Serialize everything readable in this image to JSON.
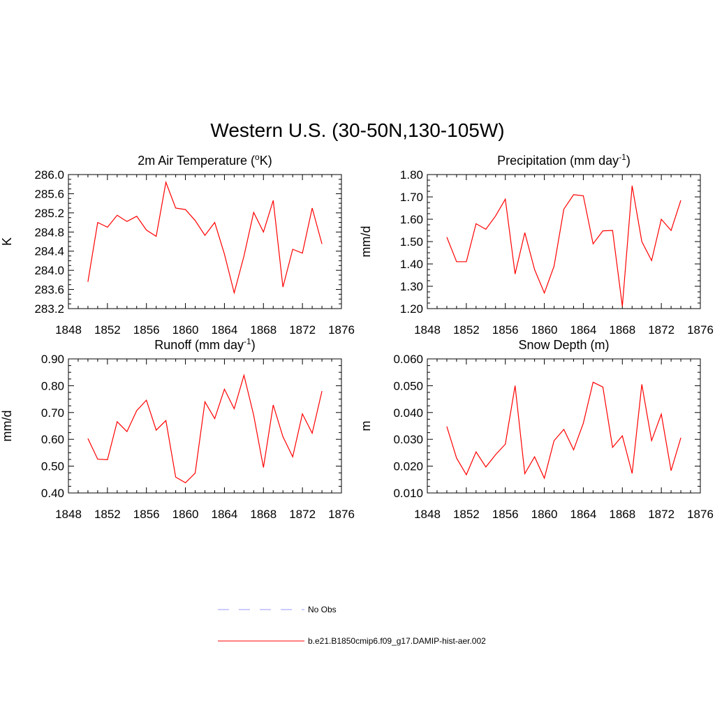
{
  "title": "Western U.S. (30-50N,130-105W)",
  "chart_data": [
    {
      "type": "line",
      "title": "2m Air Temperature (",
      "title_sup": "o",
      "title_after": "K)",
      "ylabel": "K",
      "xlim": [
        1848,
        1876
      ],
      "ylim": [
        283.2,
        286.0
      ],
      "xticks": [
        1848,
        1852,
        1856,
        1860,
        1864,
        1868,
        1872,
        1876
      ],
      "yticks": [
        "283.2",
        "283.6",
        "284.0",
        "284.4",
        "284.8",
        "285.2",
        "285.6",
        "286.0"
      ],
      "x": [
        1850,
        1851,
        1852,
        1853,
        1854,
        1855,
        1856,
        1857,
        1858,
        1859,
        1860,
        1861,
        1862,
        1863,
        1864,
        1865,
        1866,
        1867,
        1868,
        1869,
        1870,
        1871,
        1872,
        1873,
        1874
      ],
      "series": [
        {
          "name": "b.e21.B1850cmip6.f09_g17.DAMIP-hist-aer.002",
          "color": "#ff0000",
          "values": [
            283.76,
            285.0,
            284.9,
            285.15,
            285.02,
            285.13,
            284.84,
            284.71,
            285.84,
            285.3,
            285.27,
            285.04,
            284.73,
            285.0,
            284.34,
            283.53,
            284.3,
            285.21,
            284.8,
            285.46,
            283.65,
            284.44,
            284.36,
            285.3,
            284.55
          ]
        }
      ]
    },
    {
      "type": "line",
      "title": "Precipitation (mm day",
      "title_sup": "-1",
      "title_after": ")",
      "ylabel": "mm/d",
      "xlim": [
        1848,
        1876
      ],
      "ylim": [
        1.2,
        1.8
      ],
      "xticks": [
        1848,
        1852,
        1856,
        1860,
        1864,
        1868,
        1872,
        1876
      ],
      "yticks": [
        "1.20",
        "1.30",
        "1.40",
        "1.50",
        "1.60",
        "1.70",
        "1.80"
      ],
      "x": [
        1850,
        1851,
        1852,
        1853,
        1854,
        1855,
        1856,
        1857,
        1858,
        1859,
        1860,
        1861,
        1862,
        1863,
        1864,
        1865,
        1866,
        1867,
        1868,
        1869,
        1870,
        1871,
        1872,
        1873,
        1874
      ],
      "series": [
        {
          "name": "b.e21.B1850cmip6.f09_g17.DAMIP-hist-aer.002",
          "color": "#ff0000",
          "values": [
            1.52,
            1.41,
            1.41,
            1.58,
            1.555,
            1.615,
            1.69,
            1.355,
            1.54,
            1.375,
            1.27,
            1.39,
            1.645,
            1.71,
            1.705,
            1.49,
            1.548,
            1.55,
            1.21,
            1.75,
            1.5,
            1.415,
            1.6,
            1.55,
            1.685
          ]
        }
      ]
    },
    {
      "type": "line",
      "title": "Runoff (mm day",
      "title_sup": "-1",
      "title_after": ")",
      "ylabel": "mm/d",
      "xlim": [
        1848,
        1876
      ],
      "ylim": [
        0.4,
        0.9
      ],
      "xticks": [
        1848,
        1852,
        1856,
        1860,
        1864,
        1868,
        1872,
        1876
      ],
      "yticks": [
        "0.40",
        "0.50",
        "0.60",
        "0.70",
        "0.80",
        "0.90"
      ],
      "x": [
        1850,
        1851,
        1852,
        1853,
        1854,
        1855,
        1856,
        1857,
        1858,
        1859,
        1860,
        1861,
        1862,
        1863,
        1864,
        1865,
        1866,
        1867,
        1868,
        1869,
        1870,
        1871,
        1872,
        1873,
        1874
      ],
      "series": [
        {
          "name": "b.e21.B1850cmip6.f09_g17.DAMIP-hist-aer.002",
          "color": "#ff0000",
          "values": [
            0.603,
            0.526,
            0.524,
            0.666,
            0.629,
            0.707,
            0.746,
            0.634,
            0.67,
            0.459,
            0.438,
            0.474,
            0.74,
            0.677,
            0.787,
            0.714,
            0.839,
            0.69,
            0.495,
            0.728,
            0.61,
            0.535,
            0.695,
            0.623,
            0.78
          ]
        }
      ]
    },
    {
      "type": "line",
      "title": "Snow Depth (m)",
      "title_sup": "",
      "title_after": "",
      "ylabel": "m",
      "xlim": [
        1848,
        1876
      ],
      "ylim": [
        0.01,
        0.06
      ],
      "xticks": [
        1848,
        1852,
        1856,
        1860,
        1864,
        1868,
        1872,
        1876
      ],
      "yticks": [
        "0.010",
        "0.020",
        "0.030",
        "0.040",
        "0.050",
        "0.060"
      ],
      "x": [
        1850,
        1851,
        1852,
        1853,
        1854,
        1855,
        1856,
        1857,
        1858,
        1859,
        1860,
        1861,
        1862,
        1863,
        1864,
        1865,
        1866,
        1867,
        1868,
        1869,
        1870,
        1871,
        1872,
        1873,
        1874
      ],
      "series": [
        {
          "name": "b.e21.B1850cmip6.f09_g17.DAMIP-hist-aer.002",
          "color": "#ff0000",
          "values": [
            0.0348,
            0.023,
            0.0168,
            0.0253,
            0.0197,
            0.0243,
            0.0282,
            0.05,
            0.0172,
            0.0235,
            0.0155,
            0.0295,
            0.0337,
            0.0261,
            0.036,
            0.0513,
            0.0495,
            0.027,
            0.0313,
            0.0173,
            0.0505,
            0.0295,
            0.0394,
            0.0183,
            0.0306
          ]
        }
      ]
    }
  ],
  "legend": [
    {
      "label": "No Obs",
      "color": "#9999ff",
      "style": "dashed"
    },
    {
      "label": "b.e21.B1850cmip6.f09_g17.DAMIP-hist-aer.002",
      "color": "#ff0000",
      "style": "solid"
    }
  ]
}
